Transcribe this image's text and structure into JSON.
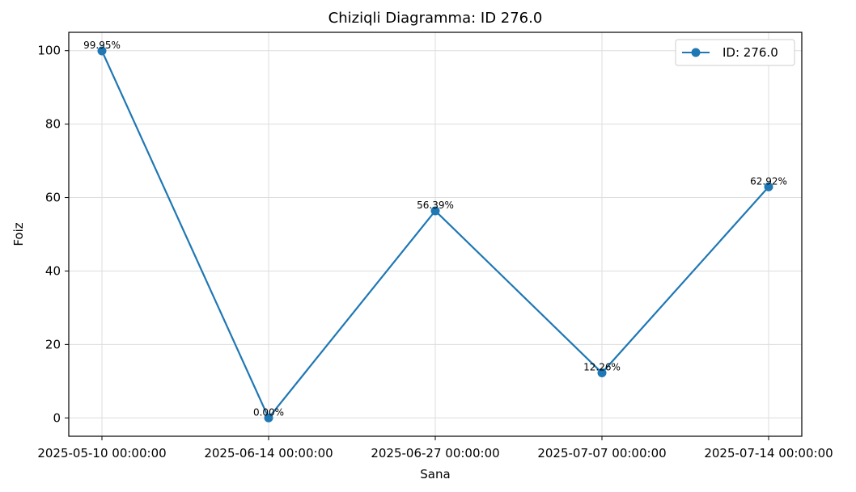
{
  "chart_data": {
    "type": "line",
    "title": "Chiziqli Diagramma: ID 276.0",
    "xlabel": "Sana",
    "ylabel": "Foiz",
    "categories": [
      "2025-05-10 00:00:00",
      "2025-06-14 00:00:00",
      "2025-06-27 00:00:00",
      "2025-07-07 00:00:00",
      "2025-07-14 00:00:00"
    ],
    "series": [
      {
        "name": "ID: 276.0",
        "values": [
          99.95,
          0.0,
          56.39,
          12.26,
          62.92
        ],
        "labels": [
          "99.95%",
          "0.00%",
          "56.39%",
          "12.26%",
          "62.92%"
        ],
        "color": "#1f77b4"
      }
    ],
    "ylim": [
      -5,
      105
    ],
    "yticks": [
      0,
      20,
      40,
      60,
      80,
      100
    ],
    "grid": true,
    "legend_position": "top-right"
  }
}
